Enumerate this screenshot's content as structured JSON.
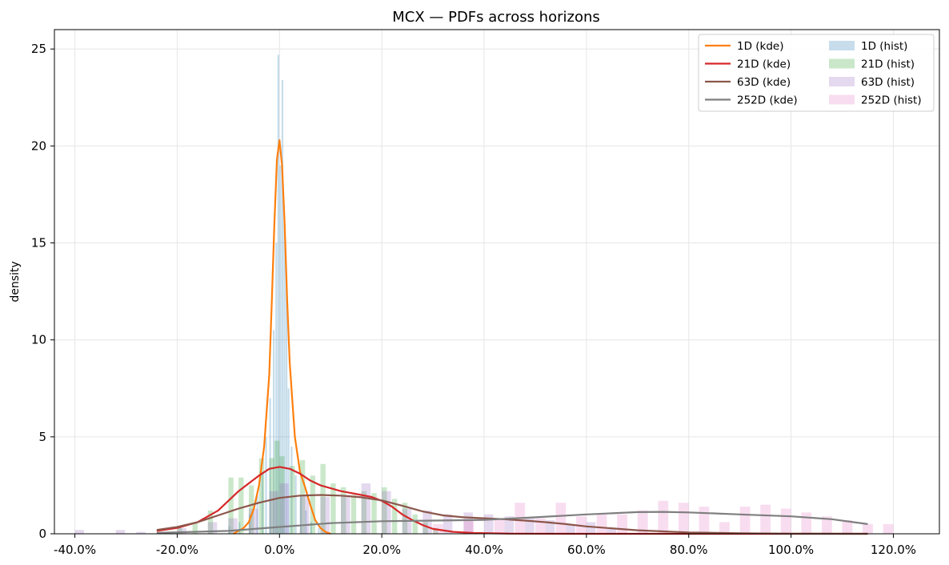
{
  "chart_data": {
    "type": "area",
    "title": "MCX — PDFs across horizons",
    "xlabel": "",
    "ylabel": "density",
    "xlim": [
      -0.44,
      1.29
    ],
    "ylim": [
      0,
      26
    ],
    "xticks": [
      -0.4,
      -0.2,
      0.0,
      0.2,
      0.4,
      0.6,
      0.8,
      1.0,
      1.2
    ],
    "xtick_labels": [
      "-40.0%",
      "-20.0%",
      "0.0%",
      "20.0%",
      "40.0%",
      "60.0%",
      "80.0%",
      "100.0%",
      "120.0%"
    ],
    "yticks": [
      0,
      5,
      10,
      15,
      20,
      25
    ],
    "ytick_labels": [
      "0",
      "5",
      "10",
      "15",
      "20",
      "25"
    ],
    "grid": true,
    "legend_position": "top-right",
    "legend": [
      {
        "label": "1D (kde)",
        "color": "#ff7f0e",
        "kind": "line"
      },
      {
        "label": "21D (kde)",
        "color": "#d62728",
        "kind": "line"
      },
      {
        "label": "63D (kde)",
        "color": "#8c564b",
        "kind": "line"
      },
      {
        "label": "252D (kde)",
        "color": "#7f7f7f",
        "kind": "line"
      },
      {
        "label": "1D (hist)",
        "color": "#1f77b4",
        "kind": "patch"
      },
      {
        "label": "21D (hist)",
        "color": "#2ca02c",
        "kind": "patch"
      },
      {
        "label": "63D (hist)",
        "color": "#9467bd",
        "kind": "patch"
      },
      {
        "label": "252D (hist)",
        "color": "#e377c2",
        "kind": "patch"
      }
    ],
    "series_kde": [
      {
        "name": "1D (kde)",
        "color": "#ff7f0e",
        "x": [
          -0.09,
          -0.07,
          -0.06,
          -0.05,
          -0.04,
          -0.03,
          -0.02,
          -0.015,
          -0.01,
          -0.005,
          0.0,
          0.005,
          0.01,
          0.015,
          0.02,
          0.03,
          0.04,
          0.05,
          0.06,
          0.07,
          0.08,
          0.09,
          0.1
        ],
        "y": [
          0.0,
          0.3,
          0.6,
          1.3,
          2.5,
          4.5,
          8.2,
          12.0,
          16.0,
          19.3,
          20.3,
          19.0,
          16.0,
          12.0,
          8.8,
          5.0,
          3.2,
          2.4,
          1.5,
          0.7,
          0.3,
          0.1,
          0.0
        ]
      },
      {
        "name": "21D (kde)",
        "color": "#d62728",
        "x": [
          -0.24,
          -0.2,
          -0.16,
          -0.12,
          -0.1,
          -0.08,
          -0.06,
          -0.04,
          -0.02,
          0.0,
          0.02,
          0.04,
          0.06,
          0.08,
          0.1,
          0.12,
          0.14,
          0.16,
          0.18,
          0.2,
          0.22,
          0.24,
          0.26,
          0.28,
          0.3,
          0.34,
          0.38,
          0.45,
          0.6,
          0.8,
          1.0,
          1.15
        ],
        "y": [
          0.15,
          0.3,
          0.6,
          1.2,
          1.7,
          2.2,
          2.6,
          3.0,
          3.35,
          3.45,
          3.35,
          3.1,
          2.75,
          2.5,
          2.35,
          2.2,
          2.1,
          2.0,
          1.9,
          1.7,
          1.4,
          1.0,
          0.7,
          0.45,
          0.25,
          0.1,
          0.04,
          0.01,
          0.0,
          0.0,
          0.0,
          0.0
        ]
      },
      {
        "name": "63D (kde)",
        "color": "#8c564b",
        "x": [
          -0.24,
          -0.2,
          -0.16,
          -0.12,
          -0.08,
          -0.04,
          0.0,
          0.04,
          0.08,
          0.12,
          0.16,
          0.2,
          0.24,
          0.28,
          0.32,
          0.36,
          0.4,
          0.44,
          0.48,
          0.52,
          0.56,
          0.6,
          0.7,
          0.8,
          0.9,
          1.0,
          1.15
        ],
        "y": [
          0.2,
          0.35,
          0.6,
          0.95,
          1.3,
          1.6,
          1.85,
          1.97,
          2.0,
          1.97,
          1.88,
          1.72,
          1.45,
          1.15,
          0.95,
          0.85,
          0.8,
          0.75,
          0.68,
          0.6,
          0.5,
          0.38,
          0.18,
          0.07,
          0.03,
          0.01,
          0.0
        ]
      },
      {
        "name": "252D (kde)",
        "color": "#7f7f7f",
        "x": [
          -0.24,
          -0.1,
          0.0,
          0.1,
          0.2,
          0.3,
          0.4,
          0.5,
          0.6,
          0.7,
          0.75,
          0.8,
          0.9,
          1.0,
          1.08,
          1.15
        ],
        "y": [
          0.05,
          0.15,
          0.35,
          0.55,
          0.65,
          0.68,
          0.72,
          0.85,
          1.0,
          1.12,
          1.13,
          1.1,
          1.0,
          0.9,
          0.75,
          0.5
        ]
      }
    ],
    "series_hist": [
      {
        "name": "1D (hist)",
        "color": "#1f77b4",
        "bin_width": 0.0035,
        "bins": [
          [
            -0.1,
            0.4
          ],
          [
            -0.08,
            0.6
          ],
          [
            -0.06,
            1.0
          ],
          [
            -0.045,
            2.0
          ],
          [
            -0.035,
            3.2
          ],
          [
            -0.028,
            5.0
          ],
          [
            -0.02,
            7.0
          ],
          [
            -0.013,
            10.5
          ],
          [
            -0.008,
            15.0
          ],
          [
            -0.004,
            24.7
          ],
          [
            0.0,
            19.0
          ],
          [
            0.004,
            23.4
          ],
          [
            0.008,
            16.0
          ],
          [
            0.012,
            13.0
          ],
          [
            0.016,
            7.5
          ],
          [
            0.022,
            4.5
          ],
          [
            0.03,
            3.0
          ],
          [
            0.04,
            2.0
          ],
          [
            0.05,
            1.2
          ],
          [
            0.06,
            0.6
          ],
          [
            0.075,
            0.3
          ]
        ]
      },
      {
        "name": "21D (hist)",
        "color": "#2ca02c",
        "bin_width": 0.01,
        "bins": [
          [
            -0.2,
            0.3
          ],
          [
            -0.17,
            0.6
          ],
          [
            -0.14,
            1.2
          ],
          [
            -0.1,
            2.9
          ],
          [
            -0.08,
            2.9
          ],
          [
            -0.06,
            2.5
          ],
          [
            -0.04,
            3.9
          ],
          [
            -0.02,
            3.9
          ],
          [
            -0.01,
            4.8
          ],
          [
            0.0,
            4.0
          ],
          [
            0.02,
            3.5
          ],
          [
            0.04,
            3.8
          ],
          [
            0.06,
            3.0
          ],
          [
            0.08,
            3.6
          ],
          [
            0.1,
            2.6
          ],
          [
            0.12,
            2.4
          ],
          [
            0.14,
            2.0
          ],
          [
            0.16,
            2.2
          ],
          [
            0.18,
            2.1
          ],
          [
            0.2,
            2.4
          ],
          [
            0.22,
            1.8
          ],
          [
            0.24,
            1.6
          ],
          [
            0.26,
            1.0
          ],
          [
            0.28,
            0.6
          ],
          [
            0.3,
            0.3
          ]
        ]
      },
      {
        "name": "63D (hist)",
        "color": "#9467bd",
        "bin_width": 0.018,
        "bins": [
          [
            -0.4,
            0.2
          ],
          [
            -0.32,
            0.2
          ],
          [
            -0.28,
            0.1
          ],
          [
            -0.2,
            0.3
          ],
          [
            -0.14,
            0.6
          ],
          [
            -0.1,
            0.8
          ],
          [
            -0.06,
            1.3
          ],
          [
            -0.02,
            2.2
          ],
          [
            0.0,
            2.6
          ],
          [
            0.04,
            2.0
          ],
          [
            0.08,
            1.9
          ],
          [
            0.12,
            2.0
          ],
          [
            0.16,
            2.6
          ],
          [
            0.2,
            2.2
          ],
          [
            0.24,
            1.3
          ],
          [
            0.28,
            1.2
          ],
          [
            0.32,
            1.0
          ],
          [
            0.36,
            1.1
          ],
          [
            0.4,
            1.0
          ],
          [
            0.44,
            0.9
          ],
          [
            0.48,
            0.8
          ],
          [
            0.52,
            0.7
          ],
          [
            0.56,
            0.5
          ],
          [
            0.6,
            0.6
          ],
          [
            0.64,
            0.3
          ]
        ]
      },
      {
        "name": "252D (hist)",
        "color": "#e377c2",
        "bin_width": 0.02,
        "bins": [
          [
            0.3,
            0.5
          ],
          [
            0.36,
            0.7
          ],
          [
            0.42,
            0.8
          ],
          [
            0.46,
            1.6
          ],
          [
            0.5,
            0.8
          ],
          [
            0.54,
            1.6
          ],
          [
            0.58,
            0.9
          ],
          [
            0.62,
            1.0
          ],
          [
            0.66,
            1.0
          ],
          [
            0.7,
            1.2
          ],
          [
            0.74,
            1.7
          ],
          [
            0.78,
            1.6
          ],
          [
            0.82,
            1.4
          ],
          [
            0.86,
            0.6
          ],
          [
            0.9,
            1.4
          ],
          [
            0.94,
            1.5
          ],
          [
            0.98,
            1.3
          ],
          [
            1.02,
            1.1
          ],
          [
            1.06,
            0.9
          ],
          [
            1.1,
            0.7
          ],
          [
            1.14,
            0.5
          ],
          [
            1.18,
            0.5
          ]
        ]
      }
    ]
  }
}
